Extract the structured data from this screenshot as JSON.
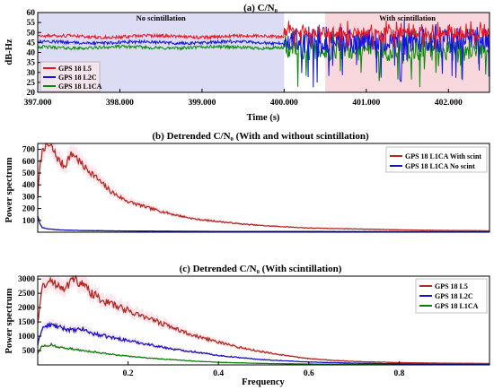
{
  "chart_data": [
    {
      "type": "line",
      "title": "(a) C/N₀",
      "xlabel": "Time (s)",
      "ylabel": "dB-Hz",
      "xlim": [
        397000,
        402500
      ],
      "ylim": [
        20,
        60
      ],
      "x_ticks": [
        "397.000",
        "398.000",
        "399.000",
        "400.000",
        "401.000",
        "402.000"
      ],
      "y_ticks": [
        20,
        25,
        30,
        35,
        40,
        45,
        50,
        55,
        60
      ],
      "legend": "bottom-left",
      "regions": [
        {
          "label": "No scintillation",
          "x_range": [
            397000,
            400000
          ],
          "color": "#dcdcf5"
        },
        {
          "label": "With scintillation",
          "x_range": [
            400500,
            402500
          ],
          "color": "#f8d8dc"
        }
      ],
      "series": [
        {
          "name": "GPS 18 L5",
          "color": "#e8141e",
          "quiet_level": 48,
          "scint_level": 50,
          "scint_range": [
            41,
            56
          ]
        },
        {
          "name": "GPS 18 L2C",
          "color": "#1414e6",
          "quiet_level": 45,
          "scint_level": 46,
          "scint_range": [
            22,
            56
          ]
        },
        {
          "name": "GPS 18 L1CA",
          "color": "#0a8c0a",
          "quiet_level": 42.5,
          "scint_level": 41,
          "scint_range": [
            22,
            52
          ]
        }
      ]
    },
    {
      "type": "line",
      "title": "(b) Detrended C/N₀ (With and without scintillation)",
      "xlabel": "",
      "ylabel": "Power spectrum",
      "xlim": [
        0,
        1
      ],
      "ylim": [
        0,
        750
      ],
      "y_ticks": [
        100,
        200,
        300,
        400,
        500,
        600,
        700
      ],
      "legend": "top-right",
      "series": [
        {
          "name": "GPS 18 L1CA With scint",
          "color": "#b4281e",
          "x": [
            0.0,
            0.005,
            0.012,
            0.02,
            0.03,
            0.04,
            0.05,
            0.06,
            0.07,
            0.08,
            0.1,
            0.12,
            0.14,
            0.16,
            0.18,
            0.2,
            0.25,
            0.3,
            0.35,
            0.4,
            0.45,
            0.5,
            0.6,
            0.7,
            0.8,
            0.9,
            1.0
          ],
          "y": [
            300,
            560,
            720,
            740,
            720,
            650,
            590,
            560,
            640,
            660,
            560,
            500,
            420,
            350,
            300,
            260,
            200,
            150,
            110,
            90,
            70,
            55,
            35,
            28,
            20,
            15,
            12
          ]
        },
        {
          "name": "GPS 18 L1CA No scint",
          "color": "#1414b4",
          "x": [
            0.0,
            0.005,
            0.01,
            0.02,
            0.04,
            0.06,
            0.1,
            0.2,
            0.4,
            0.6,
            0.8,
            1.0
          ],
          "y": [
            140,
            70,
            40,
            28,
            22,
            18,
            14,
            10,
            7,
            6,
            5,
            4
          ]
        }
      ]
    },
    {
      "type": "line",
      "title": "(c) Detrended C/N₀ (With scintillation)",
      "xlabel": "Frequency",
      "ylabel": "Power spectrum",
      "xlim": [
        0,
        1
      ],
      "ylim": [
        0,
        3100
      ],
      "x_ticks": [
        0.2,
        0.4,
        0.6,
        0.8
      ],
      "y_ticks": [
        500,
        1000,
        1500,
        2000,
        2500,
        3000
      ],
      "legend": "top-right",
      "series": [
        {
          "name": "GPS 18 L5",
          "color": "#b4281e",
          "x": [
            0.0,
            0.01,
            0.02,
            0.04,
            0.06,
            0.08,
            0.1,
            0.12,
            0.15,
            0.2,
            0.25,
            0.3,
            0.35,
            0.4,
            0.45,
            0.5,
            0.55,
            0.6,
            0.65,
            0.7,
            0.8,
            0.9,
            1.0
          ],
          "y": [
            1500,
            2700,
            2900,
            2850,
            2700,
            3000,
            2800,
            2500,
            2200,
            1900,
            1600,
            1300,
            1000,
            800,
            600,
            450,
            320,
            220,
            160,
            120,
            80,
            60,
            50
          ]
        },
        {
          "name": "GPS 18 L2C",
          "color": "#1414c8",
          "x": [
            0.0,
            0.01,
            0.03,
            0.05,
            0.08,
            0.1,
            0.12,
            0.15,
            0.2,
            0.25,
            0.3,
            0.35,
            0.4,
            0.45,
            0.5,
            0.6,
            0.7,
            0.8,
            0.9,
            1.0
          ],
          "y": [
            700,
            1300,
            1400,
            1300,
            1200,
            1250,
            1100,
            1000,
            850,
            700,
            550,
            450,
            330,
            250,
            180,
            100,
            60,
            40,
            30,
            25
          ]
        },
        {
          "name": "GPS 18 L1CA",
          "color": "#0a820a",
          "x": [
            0.0,
            0.01,
            0.03,
            0.05,
            0.08,
            0.1,
            0.15,
            0.2,
            0.25,
            0.3,
            0.35,
            0.4,
            0.5,
            0.6,
            0.7,
            0.8,
            1.0
          ],
          "y": [
            400,
            650,
            700,
            600,
            550,
            500,
            400,
            300,
            230,
            180,
            130,
            90,
            50,
            30,
            20,
            15,
            10
          ]
        }
      ]
    }
  ]
}
